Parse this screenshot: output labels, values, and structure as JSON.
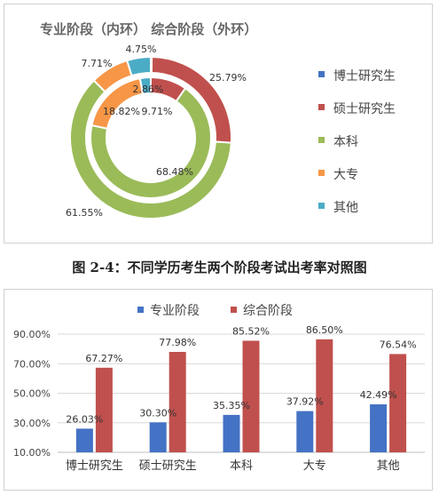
{
  "caption": "图 2-4：不同学历考生两个阶段考试出考率对照图",
  "chart_data": [
    {
      "type": "pie",
      "subtype": "double-doughnut",
      "title": "专业阶段（内环）    综合阶段（外环）",
      "categories": [
        "博士研究生",
        "硕士研究生",
        "本科",
        "大专",
        "其他"
      ],
      "colors": [
        "#4472c4",
        "#c0504d",
        "#9bbb59",
        "#f79646",
        "#4bacc6"
      ],
      "series": [
        {
          "ring": "inner",
          "values": [
            0.0,
            9.71,
            68.48,
            18.82,
            2.86
          ],
          "labels": [
            "",
            "9.71%",
            "68.48%",
            "18.82%",
            "2.86%"
          ]
        },
        {
          "ring": "outer",
          "values": [
            0.2,
            25.79,
            61.55,
            7.71,
            4.75
          ],
          "labels": [
            "",
            "25.79%",
            "61.55%",
            "7.71%",
            "4.75%"
          ]
        }
      ],
      "legend": "right"
    },
    {
      "type": "bar",
      "title": "",
      "categories": [
        "博士研究生",
        "硕士研究生",
        "本科",
        "大专",
        "其他"
      ],
      "series": [
        {
          "name": "专业阶段",
          "color": "#4472c4",
          "values": [
            26.03,
            30.3,
            35.35,
            37.92,
            42.49
          ],
          "labels": [
            "26.03%",
            "30.30%",
            "35.35%",
            "37.92%",
            "42.49%"
          ]
        },
        {
          "name": "综合阶段",
          "color": "#c0504d",
          "values": [
            67.27,
            77.98,
            85.52,
            86.5,
            76.54
          ],
          "labels": [
            "67.27%",
            "77.98%",
            "85.52%",
            "86.50%",
            "76.54%"
          ]
        }
      ],
      "ylim": [
        10,
        90
      ],
      "yticks": [
        10,
        30,
        50,
        70,
        90
      ],
      "ytick_labels": [
        "10.00%",
        "30.00%",
        "50.00%",
        "70.00%",
        "90.00%"
      ],
      "grid": true,
      "legend": "top"
    }
  ]
}
